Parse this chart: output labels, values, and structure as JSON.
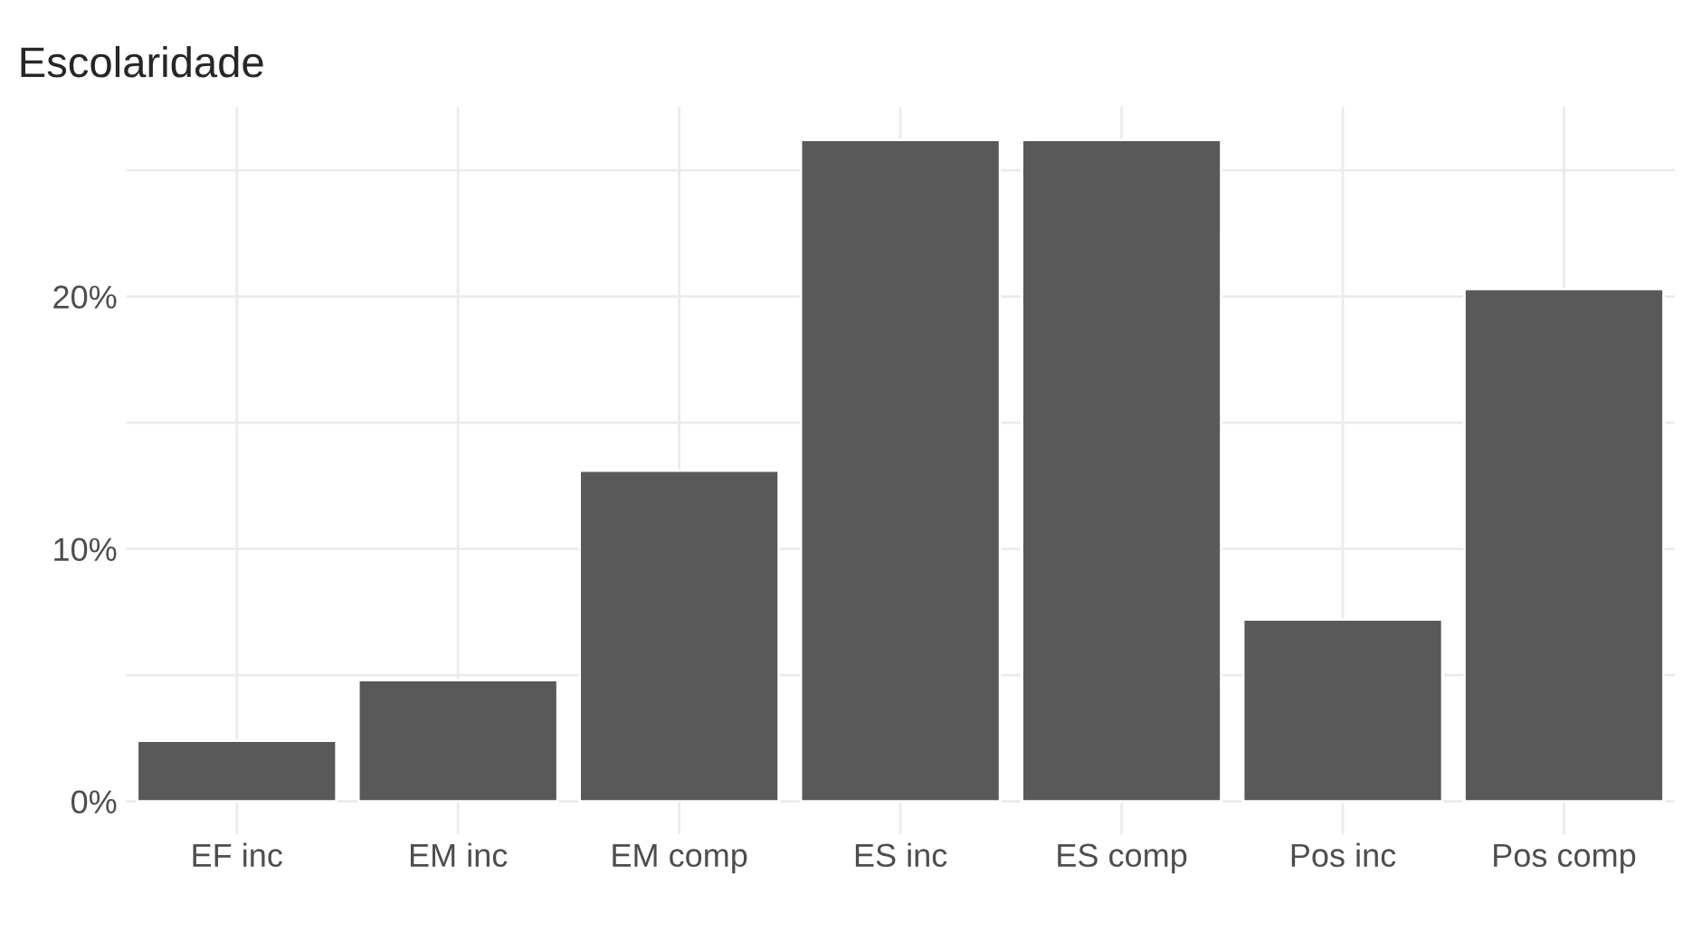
{
  "chart_data": {
    "type": "bar",
    "title": "Escolaridade",
    "categories": [
      "EF inc",
      "EM inc",
      "EM comp",
      "ES inc",
      "ES comp",
      "Pos inc",
      "Pos comp"
    ],
    "values": [
      2.4,
      4.8,
      13.1,
      26.2,
      26.2,
      7.2,
      20.3
    ],
    "color": "#595959",
    "ylim": [
      -1.3,
      27.5
    ],
    "yticks": [
      {
        "value": 0,
        "label": "0%"
      },
      {
        "value": 5,
        "label": null
      },
      {
        "value": 10,
        "label": "10%"
      },
      {
        "value": 15,
        "label": null
      },
      {
        "value": 20,
        "label": "20%"
      },
      {
        "value": 25,
        "label": null
      }
    ],
    "grid": true
  }
}
